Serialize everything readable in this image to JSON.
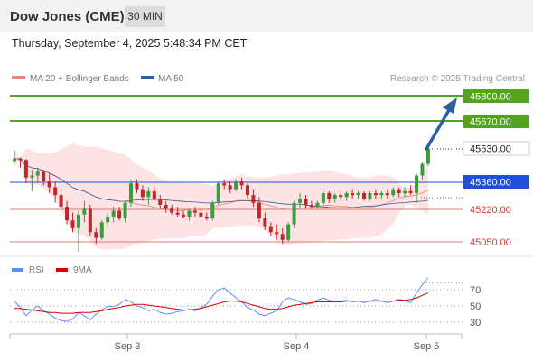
{
  "header": {
    "title": "Dow Jones (CME)",
    "timeframe": "30 MIN",
    "datetime": "Thursday, September 4, 2025 5:48:34 PM CET"
  },
  "legend": {
    "ma20_label": "MA 20 + Bollinger Bands",
    "ma50_label": "MA 50",
    "credit": "Research © 2025 Trading Central",
    "ma20_color": "#f08080",
    "ma50_color": "#2f5f9e"
  },
  "price_levels": [
    {
      "value": "45800.00",
      "kind": "green"
    },
    {
      "value": "45670.00",
      "kind": "green"
    },
    {
      "value": "45530.00",
      "kind": "current"
    },
    {
      "value": "45360.00",
      "kind": "blue"
    },
    {
      "value": "45220.00",
      "kind": "red"
    },
    {
      "value": "45050.00",
      "kind": "red"
    }
  ],
  "rsi_panel": {
    "rsi_label": "RSI",
    "ma_label": "9MA",
    "rsi_color": "#5b8ff9",
    "ma_color": "#dd0000",
    "levels": [
      "70",
      "50",
      "30"
    ]
  },
  "x_axis": {
    "labels": [
      "Sep 3",
      "Sep 4",
      "Sep 5"
    ]
  },
  "colors": {
    "green_line": "#52a51a",
    "blue_line": "#1f4fd6",
    "red_line": "#e37a7a",
    "bollinger_fill": "#fde3e3",
    "candle_up": "#3c9b3c",
    "candle_down": "#c0272d",
    "arrow": "#2f5f9e"
  },
  "chart_data": {
    "type": "candlestick",
    "y_unit": "price",
    "ylim": [
      44990,
      45870
    ],
    "arrow_target": 45800,
    "candles": [
      [
        45465,
        45520,
        45460,
        45478
      ],
      [
        45478,
        45482,
        45430,
        45470
      ],
      [
        45470,
        45475,
        45350,
        45380
      ],
      [
        45380,
        45420,
        45310,
        45390
      ],
      [
        45390,
        45430,
        45350,
        45410
      ],
      [
        45410,
        45420,
        45340,
        45360
      ],
      [
        45360,
        45400,
        45300,
        45330
      ],
      [
        45330,
        45360,
        45250,
        45290
      ],
      [
        45290,
        45320,
        45200,
        45230
      ],
      [
        45230,
        45260,
        45140,
        45160
      ],
      [
        45160,
        45200,
        45100,
        45120
      ],
      [
        45120,
        45210,
        45000,
        45190
      ],
      [
        45190,
        45260,
        45150,
        45220
      ],
      [
        45220,
        45240,
        45080,
        45100
      ],
      [
        45100,
        45120,
        45040,
        45070
      ],
      [
        45070,
        45160,
        45060,
        45150
      ],
      [
        45150,
        45200,
        45120,
        45180
      ],
      [
        45180,
        45230,
        45150,
        45210
      ],
      [
        45210,
        45230,
        45160,
        45170
      ],
      [
        45170,
        45260,
        45150,
        45250
      ],
      [
        45250,
        45370,
        45230,
        45350
      ],
      [
        45350,
        45370,
        45300,
        45320
      ],
      [
        45320,
        45340,
        45260,
        45280
      ],
      [
        45280,
        45330,
        45240,
        45310
      ],
      [
        45310,
        45330,
        45260,
        45270
      ],
      [
        45270,
        45290,
        45220,
        45240
      ],
      [
        45240,
        45260,
        45200,
        45220
      ],
      [
        45220,
        45240,
        45190,
        45200
      ],
      [
        45200,
        45230,
        45180,
        45190
      ],
      [
        45190,
        45210,
        45170,
        45180
      ],
      [
        45180,
        45220,
        45160,
        45210
      ],
      [
        45210,
        45230,
        45180,
        45200
      ],
      [
        45200,
        45220,
        45170,
        45180
      ],
      [
        45180,
        45200,
        45160,
        45170
      ],
      [
        45170,
        45260,
        45160,
        45250
      ],
      [
        45250,
        45360,
        45240,
        45350
      ],
      [
        45350,
        45370,
        45320,
        45340
      ],
      [
        45340,
        45360,
        45300,
        45320
      ],
      [
        45320,
        45370,
        45310,
        45360
      ],
      [
        45360,
        45380,
        45320,
        45340
      ],
      [
        45340,
        45350,
        45270,
        45290
      ],
      [
        45290,
        45320,
        45230,
        45250
      ],
      [
        45250,
        45280,
        45150,
        45170
      ],
      [
        45170,
        45200,
        45110,
        45130
      ],
      [
        45130,
        45150,
        45080,
        45100
      ],
      [
        45100,
        45140,
        45060,
        45090
      ],
      [
        45090,
        45120,
        45040,
        45060
      ],
      [
        45060,
        45150,
        45050,
        45140
      ],
      [
        45140,
        45260,
        45120,
        45250
      ],
      [
        45250,
        45300,
        45220,
        45270
      ],
      [
        45270,
        45290,
        45220,
        45240
      ],
      [
        45240,
        45260,
        45220,
        45230
      ],
      [
        45230,
        45260,
        45220,
        45250
      ],
      [
        45250,
        45310,
        45240,
        45300
      ],
      [
        45300,
        45310,
        45250,
        45270
      ],
      [
        45270,
        45300,
        45250,
        45290
      ],
      [
        45290,
        45310,
        45260,
        45280
      ],
      [
        45280,
        45310,
        45260,
        45300
      ],
      [
        45300,
        45320,
        45270,
        45290
      ],
      [
        45290,
        45310,
        45270,
        45300
      ],
      [
        45300,
        45310,
        45260,
        45270
      ],
      [
        45270,
        45310,
        45260,
        45300
      ],
      [
        45300,
        45320,
        45270,
        45290
      ],
      [
        45290,
        45310,
        45270,
        45300
      ],
      [
        45300,
        45320,
        45270,
        45290
      ],
      [
        45290,
        45330,
        45280,
        45320
      ],
      [
        45320,
        45330,
        45280,
        45300
      ],
      [
        45300,
        45330,
        45280,
        45310
      ],
      [
        45310,
        45340,
        45290,
        45300
      ],
      [
        45300,
        45400,
        45250,
        45390
      ],
      [
        45390,
        45460,
        45370,
        45450
      ],
      [
        45450,
        45530,
        45440,
        45530
      ]
    ],
    "rsi": [
      56,
      48,
      38,
      45,
      50,
      44,
      40,
      35,
      32,
      31,
      34,
      42,
      38,
      33,
      40,
      45,
      50,
      49,
      52,
      58,
      55,
      50,
      48,
      44,
      46,
      42,
      40,
      41,
      43,
      44,
      46,
      44,
      48,
      52,
      62,
      70,
      72,
      66,
      60,
      55,
      48,
      45,
      40,
      38,
      41,
      44,
      55,
      60,
      58,
      55,
      52,
      53,
      57,
      60,
      57,
      55,
      56,
      57,
      55,
      56,
      54,
      56,
      58,
      56,
      54,
      56,
      58,
      57,
      54,
      66,
      76,
      85
    ],
    "rsi_ma": [
      47,
      47,
      46,
      45,
      44,
      43,
      42,
      42,
      41,
      41,
      41,
      42,
      42,
      42,
      43,
      44,
      46,
      47,
      48,
      50,
      51,
      52,
      52,
      51,
      50,
      49,
      48,
      47,
      46,
      45,
      45,
      46,
      47,
      49,
      51,
      53,
      55,
      56,
      56,
      55,
      53,
      51,
      49,
      47,
      46,
      46,
      47,
      49,
      51,
      52,
      53,
      54,
      55,
      55,
      55,
      55,
      55,
      56,
      56,
      56,
      56,
      56,
      56,
      56,
      56,
      56,
      57,
      57,
      58,
      60,
      63,
      66
    ],
    "rsi_ylim": [
      0,
      100
    ]
  }
}
